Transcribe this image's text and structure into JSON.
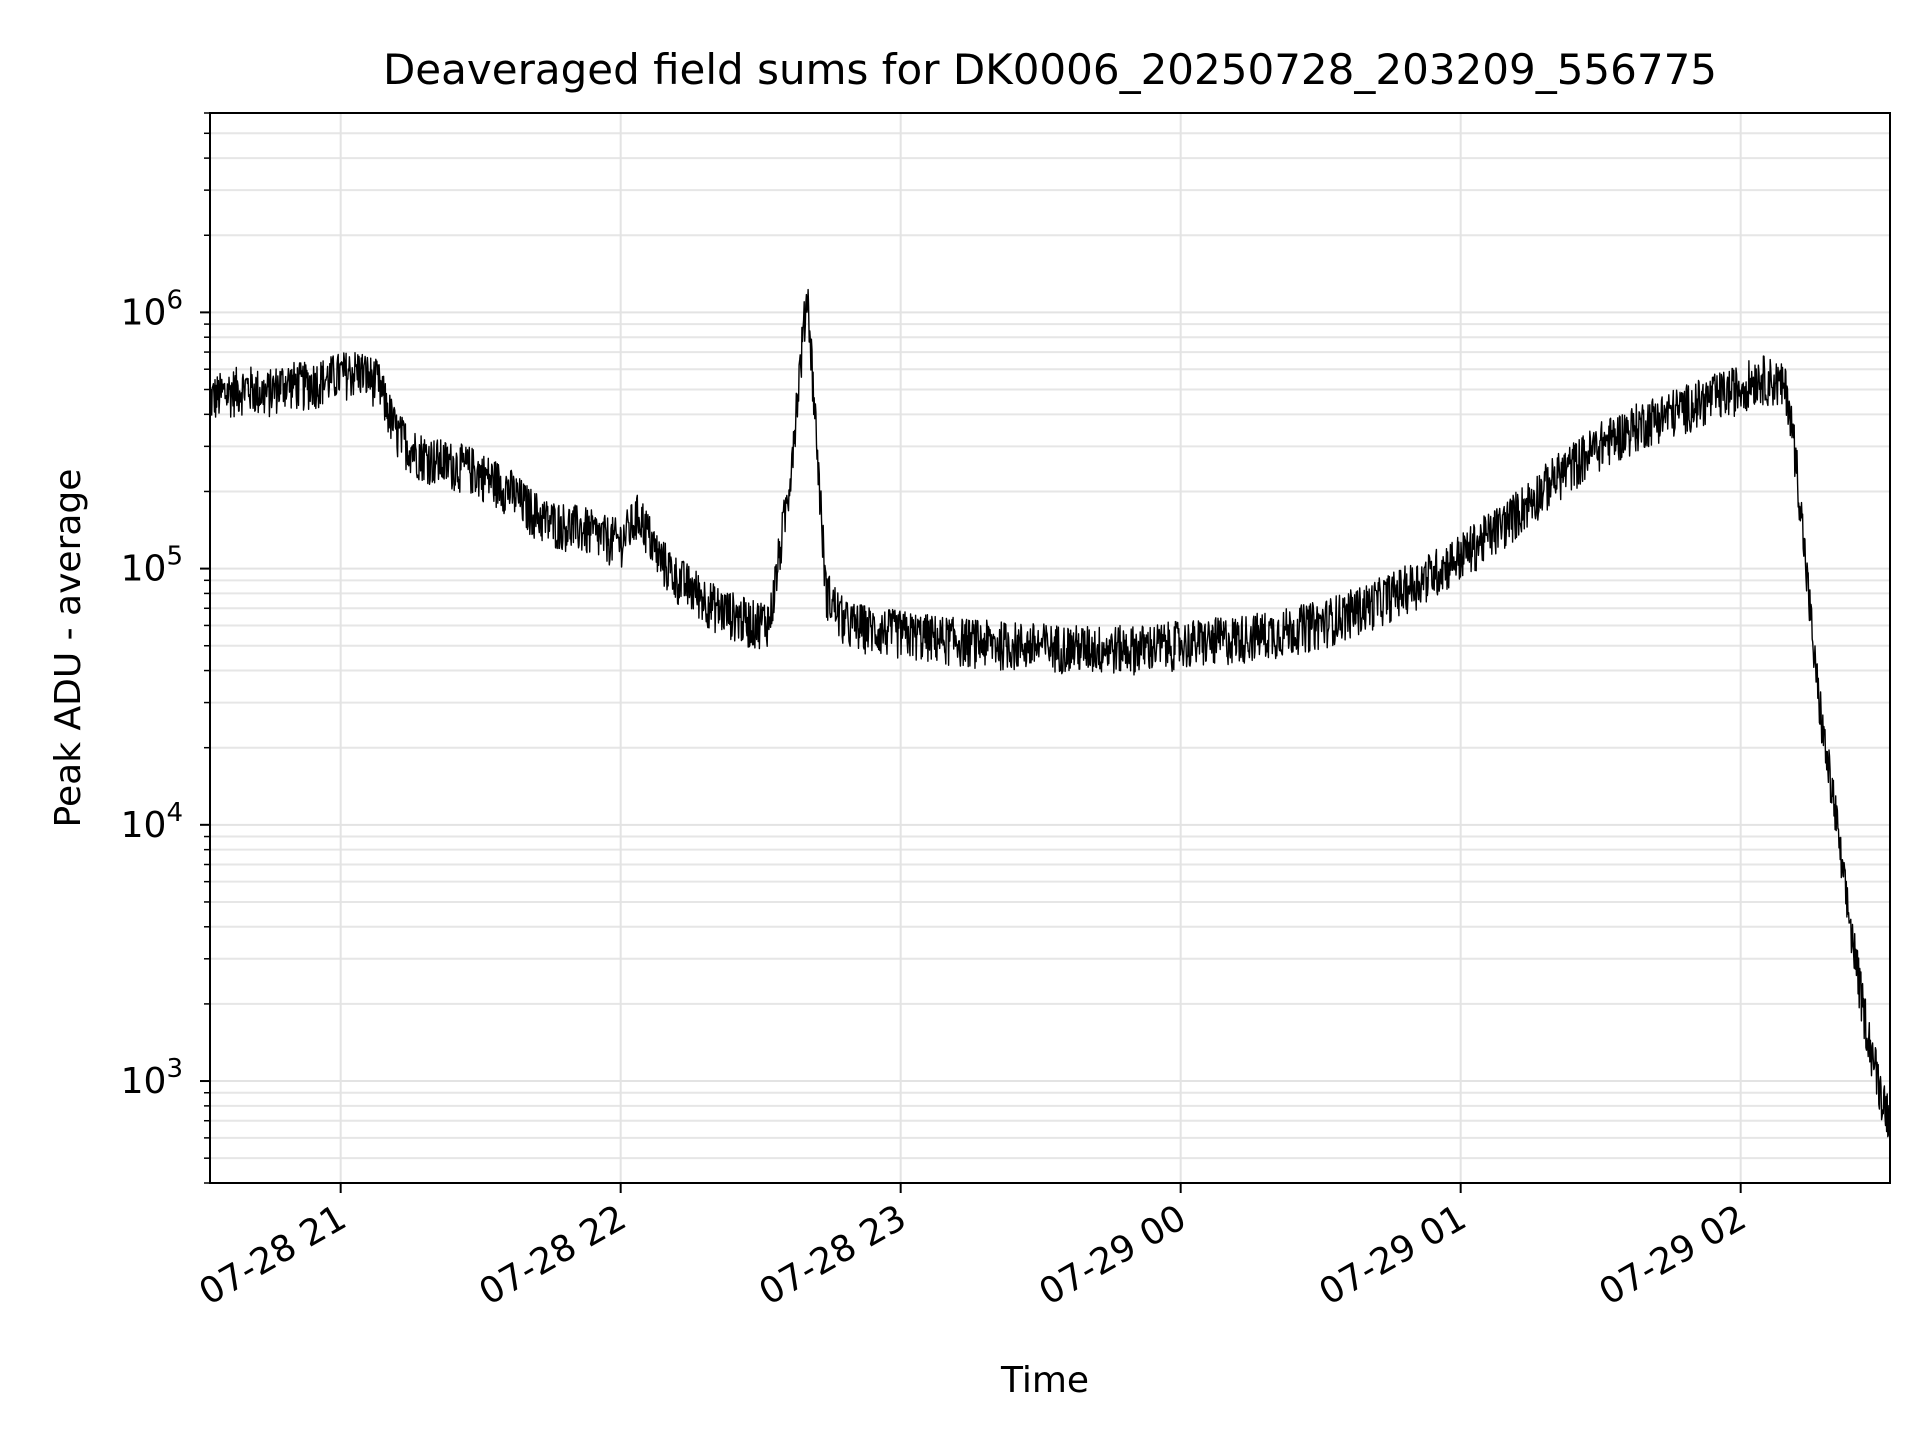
{
  "chart_data": {
    "type": "line",
    "title": "Deaveraged field sums for DK0006_20250728_203209_556775",
    "xlabel": "Time",
    "ylabel": "Peak ADU - average",
    "x_range": [
      "07-28 20:32",
      "07-29 02:32"
    ],
    "ylim": [
      400,
      6000000
    ],
    "y_scale": "log",
    "grid": "major and minor",
    "x_ticks": [
      {
        "value": "07-28 21:00",
        "label": "07-28 21"
      },
      {
        "value": "07-28 22:00",
        "label": "07-28 22"
      },
      {
        "value": "07-28 23:00",
        "label": "07-28 23"
      },
      {
        "value": "07-29 00:00",
        "label": "07-29 00"
      },
      {
        "value": "07-29 01:00",
        "label": "07-29 01"
      },
      {
        "value": "07-29 02:00",
        "label": "07-29 02"
      }
    ],
    "y_ticks": [
      {
        "value": 1000,
        "base": "10",
        "exp": "3"
      },
      {
        "value": 10000,
        "base": "10",
        "exp": "4"
      },
      {
        "value": 100000,
        "base": "10",
        "exp": "5"
      },
      {
        "value": 1000000,
        "base": "10",
        "exp": "6"
      }
    ],
    "series": [
      {
        "color": "#000000",
        "x": [
          "07-28 20:32",
          "07-28 20:36",
          "07-28 20:40",
          "07-28 20:44",
          "07-28 20:48",
          "07-28 20:52",
          "07-28 20:56",
          "07-28 21:00",
          "07-28 21:04",
          "07-28 21:08",
          "07-28 21:12",
          "07-28 21:16",
          "07-28 21:20",
          "07-28 21:24",
          "07-28 21:28",
          "07-28 21:32",
          "07-28 21:36",
          "07-28 21:40",
          "07-28 21:44",
          "07-28 21:48",
          "07-28 21:52",
          "07-28 21:56",
          "07-28 22:00",
          "07-28 22:04",
          "07-28 22:08",
          "07-28 22:12",
          "07-28 22:16",
          "07-28 22:20",
          "07-28 22:24",
          "07-28 22:28",
          "07-28 22:32",
          "07-28 22:36",
          "07-28 22:40",
          "07-28 22:44",
          "07-28 22:48",
          "07-28 22:52",
          "07-28 22:56",
          "07-28 23:00",
          "07-28 23:10",
          "07-28 23:20",
          "07-28 23:30",
          "07-28 23:40",
          "07-28 23:50",
          "07-29 00:00",
          "07-29 00:10",
          "07-29 00:20",
          "07-29 00:30",
          "07-29 00:40",
          "07-29 00:50",
          "07-29 01:00",
          "07-29 01:10",
          "07-29 01:20",
          "07-29 01:30",
          "07-29 01:40",
          "07-29 01:50",
          "07-29 02:00",
          "07-29 02:04",
          "07-29 02:08",
          "07-29 02:10",
          "07-29 02:12",
          "07-29 02:14",
          "07-29 02:16",
          "07-29 02:18",
          "07-29 02:20",
          "07-29 02:22",
          "07-29 02:24",
          "07-29 02:26",
          "07-29 02:28",
          "07-29 02:30",
          "07-29 02:32"
        ],
        "y": [
          450000,
          480000,
          500000,
          470000,
          520000,
          510000,
          530000,
          560000,
          580000,
          520000,
          330000,
          280000,
          260000,
          250000,
          240000,
          220000,
          200000,
          170000,
          150000,
          145000,
          140000,
          130000,
          125000,
          160000,
          110000,
          90000,
          80000,
          70000,
          65000,
          60000,
          62000,
          200000,
          1200000,
          80000,
          60000,
          58000,
          56000,
          55000,
          52000,
          50000,
          49000,
          48000,
          48000,
          50000,
          52000,
          55000,
          60000,
          70000,
          85000,
          110000,
          150000,
          220000,
          300000,
          370000,
          430000,
          500000,
          550000,
          520000,
          480000,
          250000,
          100000,
          40000,
          20000,
          12000,
          6000,
          3500,
          2000,
          1300,
          900,
          700
        ]
      }
    ]
  }
}
